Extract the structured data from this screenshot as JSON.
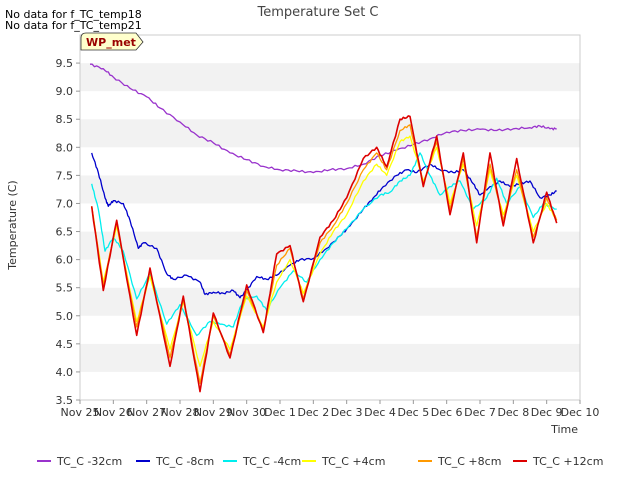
{
  "notes": [
    "No data for f_TC_temp18",
    "No data for f_TC_temp21"
  ],
  "chart_data": {
    "type": "line",
    "title": "Temperature Set C",
    "xlabel": "Time",
    "ylabel": "Temperature (C)",
    "badge": "WP_met",
    "ylim": [
      3.5,
      10.0
    ],
    "yticks": [
      3.5,
      4.0,
      4.5,
      5.0,
      5.5,
      6.0,
      6.5,
      7.0,
      7.5,
      8.0,
      8.5,
      9.0,
      9.5
    ],
    "xlim": [
      0,
      15
    ],
    "xticks": [
      {
        "value": 0,
        "label": "Nov 25"
      },
      {
        "value": 1,
        "label": "Nov 26"
      },
      {
        "value": 2,
        "label": "Nov 27"
      },
      {
        "value": 3,
        "label": "Nov 28"
      },
      {
        "value": 4,
        "label": "Nov 29"
      },
      {
        "value": 5,
        "label": "Nov 30"
      },
      {
        "value": 6,
        "label": "Dec 1"
      },
      {
        "value": 7,
        "label": "Dec 2"
      },
      {
        "value": 8,
        "label": "Dec 3"
      },
      {
        "value": 9,
        "label": "Dec 4"
      },
      {
        "value": 10,
        "label": "Dec 5"
      },
      {
        "value": 11,
        "label": "Dec 6"
      },
      {
        "value": 12,
        "label": "Dec 7"
      },
      {
        "value": 13,
        "label": "Dec 8"
      },
      {
        "value": 14,
        "label": "Dec 9"
      },
      {
        "value": 15,
        "label": "Dec 10"
      }
    ],
    "grid": "horizontal bands",
    "legend_position": "bottom",
    "series": [
      {
        "name": "TC_C -32cm",
        "color": "#9933cc",
        "width": 1.3,
        "points": [
          [
            0.3,
            9.48
          ],
          [
            0.7,
            9.4
          ],
          [
            1.0,
            9.25
          ],
          [
            1.5,
            9.05
          ],
          [
            2.0,
            8.9
          ],
          [
            2.4,
            8.7
          ],
          [
            3.0,
            8.45
          ],
          [
            3.5,
            8.22
          ],
          [
            4.0,
            8.08
          ],
          [
            4.5,
            7.9
          ],
          [
            5.0,
            7.78
          ],
          [
            5.5,
            7.66
          ],
          [
            6.0,
            7.6
          ],
          [
            6.5,
            7.58
          ],
          [
            7.0,
            7.55
          ],
          [
            7.5,
            7.6
          ],
          [
            8.0,
            7.62
          ],
          [
            8.5,
            7.7
          ],
          [
            9.0,
            7.85
          ],
          [
            9.5,
            7.95
          ],
          [
            10.0,
            8.05
          ],
          [
            10.5,
            8.15
          ],
          [
            11.0,
            8.27
          ],
          [
            11.5,
            8.3
          ],
          [
            12.0,
            8.32
          ],
          [
            12.5,
            8.3
          ],
          [
            13.0,
            8.33
          ],
          [
            13.5,
            8.35
          ],
          [
            13.8,
            8.38
          ],
          [
            14.1,
            8.33
          ],
          [
            14.3,
            8.33
          ]
        ]
      },
      {
        "name": "TC_C -8cm",
        "color": "#0000cc",
        "width": 1.3,
        "points": [
          [
            0.35,
            7.9
          ],
          [
            0.55,
            7.55
          ],
          [
            0.75,
            7.1
          ],
          [
            0.85,
            6.95
          ],
          [
            1.0,
            7.05
          ],
          [
            1.3,
            7.0
          ],
          [
            1.5,
            6.7
          ],
          [
            1.75,
            6.2
          ],
          [
            1.9,
            6.3
          ],
          [
            2.3,
            6.2
          ],
          [
            2.6,
            5.75
          ],
          [
            2.8,
            5.65
          ],
          [
            3.2,
            5.72
          ],
          [
            3.6,
            5.6
          ],
          [
            3.75,
            5.38
          ],
          [
            4.0,
            5.42
          ],
          [
            4.3,
            5.4
          ],
          [
            4.6,
            5.45
          ],
          [
            4.8,
            5.32
          ],
          [
            5.0,
            5.45
          ],
          [
            5.3,
            5.7
          ],
          [
            5.6,
            5.65
          ],
          [
            5.9,
            5.72
          ],
          [
            6.3,
            5.9
          ],
          [
            6.6,
            6.0
          ],
          [
            7.0,
            6.02
          ],
          [
            7.4,
            6.2
          ],
          [
            7.8,
            6.42
          ],
          [
            8.1,
            6.6
          ],
          [
            8.5,
            6.9
          ],
          [
            8.8,
            7.1
          ],
          [
            9.1,
            7.3
          ],
          [
            9.5,
            7.5
          ],
          [
            9.8,
            7.6
          ],
          [
            10.1,
            7.55
          ],
          [
            10.5,
            7.7
          ],
          [
            10.8,
            7.6
          ],
          [
            11.2,
            7.55
          ],
          [
            11.5,
            7.6
          ],
          [
            11.8,
            7.35
          ],
          [
            12.0,
            7.15
          ],
          [
            12.3,
            7.3
          ],
          [
            12.6,
            7.4
          ],
          [
            12.9,
            7.3
          ],
          [
            13.2,
            7.35
          ],
          [
            13.5,
            7.4
          ],
          [
            13.8,
            7.1
          ],
          [
            14.1,
            7.15
          ],
          [
            14.3,
            7.22
          ]
        ]
      },
      {
        "name": "TC_C -4cm",
        "color": "#00eeee",
        "width": 1.3,
        "points": [
          [
            0.35,
            7.35
          ],
          [
            0.55,
            6.9
          ],
          [
            0.75,
            6.15
          ],
          [
            1.0,
            6.4
          ],
          [
            1.3,
            6.15
          ],
          [
            1.7,
            5.3
          ],
          [
            2.1,
            5.75
          ],
          [
            2.6,
            4.85
          ],
          [
            3.0,
            5.2
          ],
          [
            3.5,
            4.65
          ],
          [
            3.9,
            4.9
          ],
          [
            4.2,
            4.85
          ],
          [
            4.6,
            4.8
          ],
          [
            4.9,
            5.3
          ],
          [
            5.3,
            5.35
          ],
          [
            5.6,
            5.1
          ],
          [
            6.0,
            5.5
          ],
          [
            6.4,
            5.8
          ],
          [
            6.8,
            5.6
          ],
          [
            7.2,
            6.0
          ],
          [
            7.6,
            6.3
          ],
          [
            8.0,
            6.55
          ],
          [
            8.5,
            6.9
          ],
          [
            9.0,
            7.15
          ],
          [
            9.3,
            7.2
          ],
          [
            9.6,
            7.4
          ],
          [
            9.9,
            7.5
          ],
          [
            10.2,
            7.9
          ],
          [
            10.5,
            7.5
          ],
          [
            10.8,
            7.15
          ],
          [
            11.1,
            7.3
          ],
          [
            11.4,
            7.4
          ],
          [
            11.8,
            6.9
          ],
          [
            12.2,
            7.1
          ],
          [
            12.5,
            7.45
          ],
          [
            12.8,
            7.0
          ],
          [
            13.2,
            7.3
          ],
          [
            13.6,
            6.75
          ],
          [
            13.9,
            7.0
          ],
          [
            14.3,
            6.9
          ]
        ]
      },
      {
        "name": "TC_C +4cm",
        "color": "#ffff00",
        "width": 1.3,
        "points": [
          [
            0.35,
            6.95
          ],
          [
            0.7,
            5.6
          ],
          [
            1.1,
            6.6
          ],
          [
            1.7,
            4.9
          ],
          [
            2.1,
            5.7
          ],
          [
            2.7,
            4.4
          ],
          [
            3.1,
            5.25
          ],
          [
            3.6,
            4.1
          ],
          [
            4.0,
            4.9
          ],
          [
            4.5,
            4.4
          ],
          [
            5.0,
            5.35
          ],
          [
            5.5,
            4.8
          ],
          [
            5.9,
            5.6
          ],
          [
            6.3,
            6.0
          ],
          [
            6.7,
            5.4
          ],
          [
            7.2,
            6.1
          ],
          [
            7.6,
            6.5
          ],
          [
            8.0,
            6.8
          ],
          [
            8.5,
            7.4
          ],
          [
            8.9,
            7.7
          ],
          [
            9.2,
            7.5
          ],
          [
            9.6,
            8.1
          ],
          [
            9.9,
            8.2
          ],
          [
            10.3,
            7.4
          ],
          [
            10.7,
            8.0
          ],
          [
            11.1,
            7.0
          ],
          [
            11.5,
            7.7
          ],
          [
            11.9,
            6.6
          ],
          [
            12.3,
            7.6
          ],
          [
            12.7,
            6.8
          ],
          [
            13.1,
            7.5
          ],
          [
            13.6,
            6.5
          ],
          [
            14.0,
            7.0
          ],
          [
            14.3,
            6.7
          ]
        ]
      },
      {
        "name": "TC_C +8cm",
        "color": "#ff9900",
        "width": 1.3,
        "points": [
          [
            0.35,
            6.95
          ],
          [
            0.7,
            5.55
          ],
          [
            1.1,
            6.65
          ],
          [
            1.7,
            4.8
          ],
          [
            2.1,
            5.8
          ],
          [
            2.7,
            4.25
          ],
          [
            3.1,
            5.3
          ],
          [
            3.6,
            3.8
          ],
          [
            4.0,
            5.0
          ],
          [
            4.5,
            4.3
          ],
          [
            5.0,
            5.45
          ],
          [
            5.5,
            4.75
          ],
          [
            5.9,
            5.9
          ],
          [
            6.3,
            6.2
          ],
          [
            6.7,
            5.3
          ],
          [
            7.2,
            6.3
          ],
          [
            7.6,
            6.6
          ],
          [
            8.0,
            7.0
          ],
          [
            8.5,
            7.6
          ],
          [
            8.9,
            7.9
          ],
          [
            9.2,
            7.6
          ],
          [
            9.6,
            8.3
          ],
          [
            9.9,
            8.4
          ],
          [
            10.3,
            7.35
          ],
          [
            10.7,
            8.1
          ],
          [
            11.1,
            6.9
          ],
          [
            11.5,
            7.8
          ],
          [
            11.9,
            6.4
          ],
          [
            12.3,
            7.7
          ],
          [
            12.7,
            6.7
          ],
          [
            13.1,
            7.6
          ],
          [
            13.6,
            6.4
          ],
          [
            14.0,
            7.1
          ],
          [
            14.3,
            6.7
          ]
        ]
      },
      {
        "name": "TC_C +12cm",
        "color": "#dd0000",
        "width": 1.6,
        "points": [
          [
            0.35,
            6.95
          ],
          [
            0.7,
            5.45
          ],
          [
            1.1,
            6.7
          ],
          [
            1.7,
            4.65
          ],
          [
            2.1,
            5.85
          ],
          [
            2.7,
            4.1
          ],
          [
            3.1,
            5.35
          ],
          [
            3.6,
            3.65
          ],
          [
            4.0,
            5.05
          ],
          [
            4.5,
            4.25
          ],
          [
            5.0,
            5.55
          ],
          [
            5.5,
            4.7
          ],
          [
            5.9,
            6.1
          ],
          [
            6.3,
            6.25
          ],
          [
            6.7,
            5.25
          ],
          [
            7.2,
            6.4
          ],
          [
            7.6,
            6.7
          ],
          [
            8.0,
            7.1
          ],
          [
            8.5,
            7.8
          ],
          [
            8.9,
            8.0
          ],
          [
            9.2,
            7.65
          ],
          [
            9.6,
            8.5
          ],
          [
            9.9,
            8.55
          ],
          [
            10.3,
            7.3
          ],
          [
            10.7,
            8.2
          ],
          [
            11.1,
            6.8
          ],
          [
            11.5,
            7.9
          ],
          [
            11.9,
            6.3
          ],
          [
            12.3,
            7.9
          ],
          [
            12.7,
            6.6
          ],
          [
            13.1,
            7.8
          ],
          [
            13.6,
            6.3
          ],
          [
            14.0,
            7.2
          ],
          [
            14.3,
            6.65
          ]
        ]
      }
    ]
  }
}
